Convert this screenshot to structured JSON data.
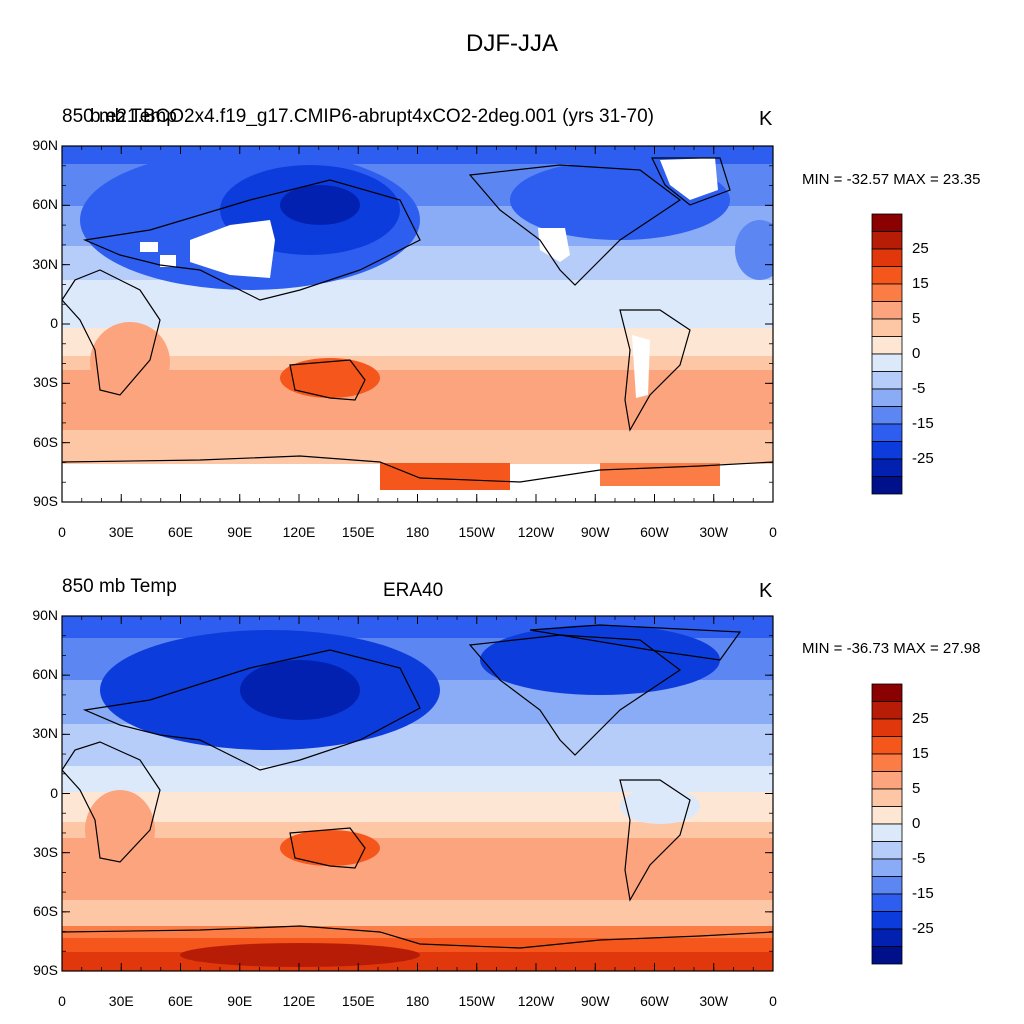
{
  "title": "DJF-JJA",
  "panels": [
    {
      "left_label": "850 mb Temp",
      "center_label": "b.e21.BCO2x4.f19_g17.CMIP6-abrupt4xCO2-2deg.001 (yrs 31-70)",
      "units": "K",
      "minmax": "MIN = -32.57 MAX =  23.35"
    },
    {
      "left_label": "850 mb Temp",
      "center_label": "ERA40",
      "units": "K",
      "minmax": "MIN = -36.73 MAX =  27.98"
    }
  ],
  "lat_ticks": [
    "90N",
    "60N",
    "30N",
    "0",
    "30S",
    "60S",
    "90S"
  ],
  "lon_ticks": [
    "0",
    "30E",
    "60E",
    "90E",
    "120E",
    "150E",
    "180",
    "150W",
    "120W",
    "90W",
    "60W",
    "30W",
    "0"
  ],
  "colorbar": {
    "colors": [
      "#8b0000",
      "#b71c07",
      "#e0380c",
      "#f5561c",
      "#fb7d45",
      "#fca47d",
      "#fdc7a6",
      "#fde6d4",
      "#dce9fb",
      "#b6cdf9",
      "#8aabf6",
      "#5c86f2",
      "#2d5ef0",
      "#0d3cdc",
      "#0221b0",
      "#00108a"
    ],
    "labels": [
      "25",
      "15",
      "5",
      "0",
      "-5",
      "-15",
      "-25"
    ]
  }
}
